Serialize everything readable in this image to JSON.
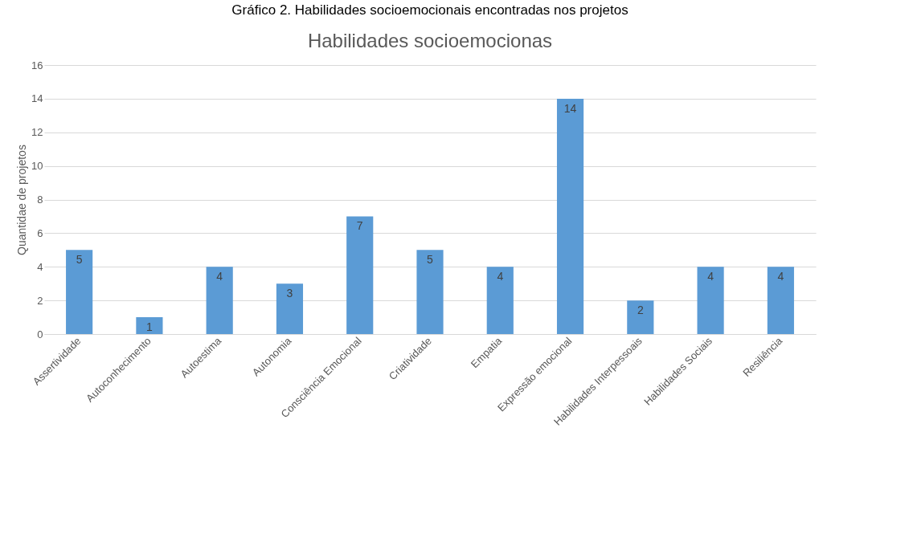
{
  "chart_data": {
    "type": "bar",
    "title": "Gráfico 2. Habilidades socioemocionais encontradas nos projetos",
    "subtitle": "Habilidades socioemocionas",
    "ylabel": "Quantidae de projetos",
    "categories": [
      "Assertividade",
      "Autoconhecimento",
      "Autoestima",
      "Autonomia",
      "Consciência Emocional",
      "Criatividade",
      "Empatia",
      "Expressão emocional",
      "Habilidades Interpessoais",
      "Habilidades Sociais",
      "Resiliência"
    ],
    "values": [
      5,
      1,
      4,
      3,
      7,
      5,
      4,
      14,
      2,
      4,
      4
    ],
    "color": "#5b9bd5",
    "ylim": [
      0,
      16
    ],
    "yticks": [
      0,
      2,
      4,
      6,
      8,
      10,
      12,
      14,
      16
    ],
    "grid": "y",
    "data_labels": true
  }
}
